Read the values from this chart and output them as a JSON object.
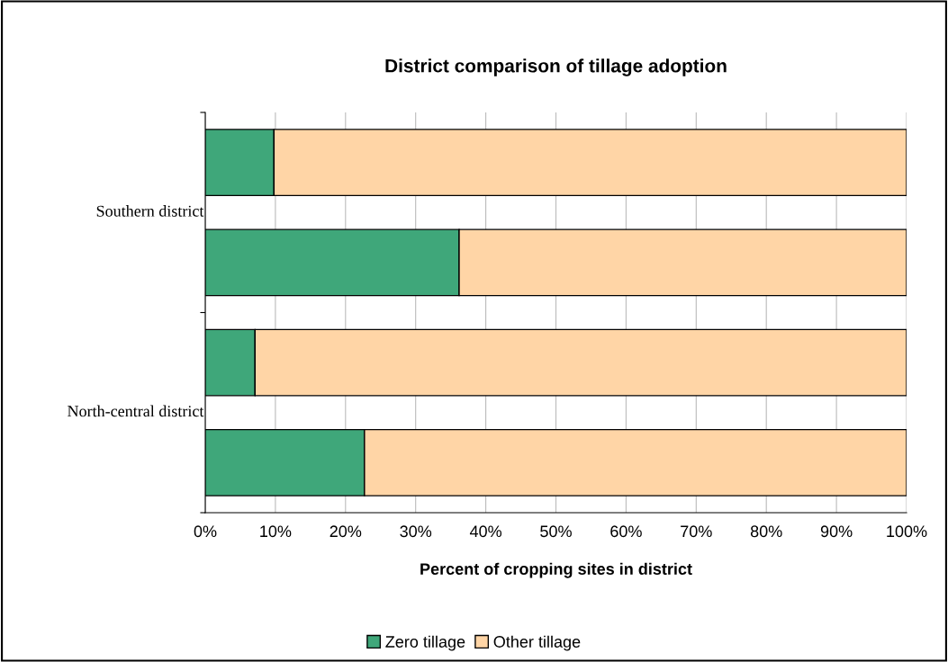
{
  "chart_data": {
    "type": "bar",
    "orientation": "horizontal",
    "stacked": true,
    "title": "District comparison of tillage adoption",
    "xlabel": "Percent of cropping sites in district",
    "categories": [
      null,
      null,
      null,
      null
    ],
    "annotations": [
      "Southern district",
      "North-central district"
    ],
    "series": [
      {
        "name": "Zero tillage",
        "color": "#3fa77a",
        "values": [
          9.8,
          36.2,
          7.1,
          22.7
        ]
      },
      {
        "name": "Other tillage",
        "color": "#ffd5a6",
        "values": [
          90.2,
          63.8,
          92.9,
          77.3
        ]
      }
    ],
    "xlim": [
      0,
      100
    ],
    "xticks": [
      {
        "value": 0,
        "label": "0%"
      },
      {
        "value": 10,
        "label": "10%"
      },
      {
        "value": 20,
        "label": "20%"
      },
      {
        "value": 30,
        "label": "30%"
      },
      {
        "value": 40,
        "label": "40%"
      },
      {
        "value": 50,
        "label": "50%"
      },
      {
        "value": 60,
        "label": "60%"
      },
      {
        "value": 70,
        "label": "70%"
      },
      {
        "value": 80,
        "label": "80%"
      },
      {
        "value": 90,
        "label": "90%"
      },
      {
        "value": 100,
        "label": "100%"
      }
    ],
    "grid": "x",
    "legend": "bottom"
  }
}
